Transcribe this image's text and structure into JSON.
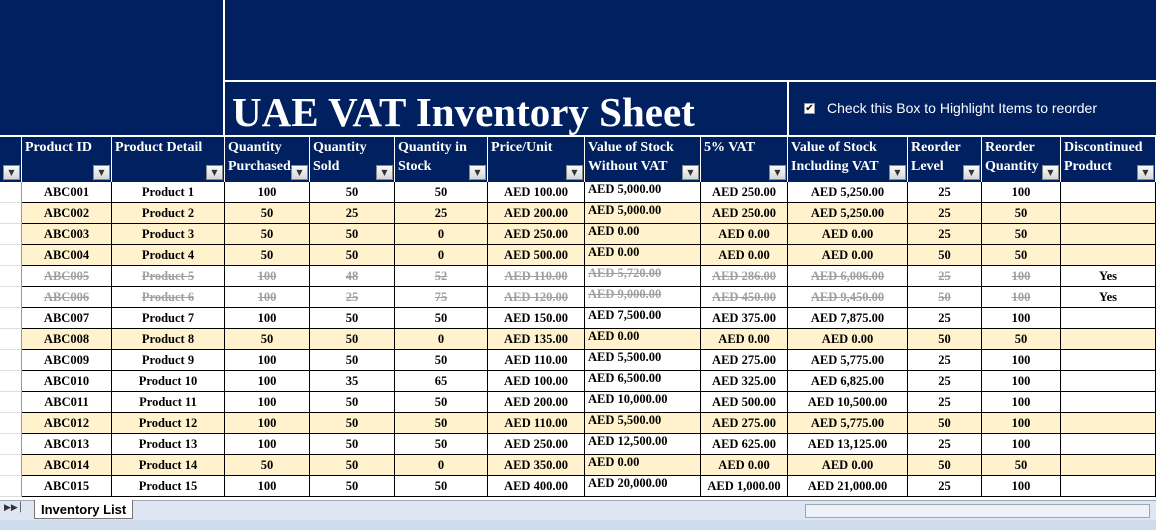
{
  "header": {
    "title": "UAE VAT Inventory Sheet",
    "checkbox_label": "Check this Box to Highlight Items to reorder",
    "checkbox_checked": true
  },
  "table": {
    "columns": [
      "Product ID",
      "Product Detail",
      "Quantity Purchased",
      "Quantity Sold",
      "Quantity in Stock",
      "Price/Unit",
      "Value of Stock Without VAT",
      "5% VAT",
      "Value of Stock Including VAT",
      "Reorder Level",
      "Reorder Quantity",
      "Discontinued Product"
    ],
    "rows": [
      [
        "ABC001",
        "Product 1",
        100,
        50,
        50,
        "AED 100.00",
        "AED 5,000.00",
        "AED 250.00",
        "AED 5,250.00",
        25,
        100,
        null
      ],
      [
        "ABC002",
        "Product 2",
        50,
        25,
        25,
        "AED 200.00",
        "AED 5,000.00",
        "AED 250.00",
        "AED 5,250.00",
        25,
        50,
        null
      ],
      [
        "ABC003",
        "Product 3",
        50,
        50,
        0,
        "AED 250.00",
        "AED 0.00",
        "AED 0.00",
        "AED 0.00",
        25,
        50,
        null
      ],
      [
        "ABC004",
        "Product 4",
        50,
        50,
        0,
        "AED 500.00",
        "AED 0.00",
        "AED 0.00",
        "AED 0.00",
        50,
        50,
        null
      ],
      [
        "ABC005",
        "Product 5",
        100,
        48,
        52,
        "AED 110.00",
        "AED 5,720.00",
        "AED 286.00",
        "AED 6,006.00",
        25,
        100,
        "Yes"
      ],
      [
        "ABC006",
        "Product 6",
        100,
        25,
        75,
        "AED 120.00",
        "AED 9,000.00",
        "AED 450.00",
        "AED 9,450.00",
        50,
        100,
        "Yes"
      ],
      [
        "ABC007",
        "Product 7",
        100,
        50,
        50,
        "AED 150.00",
        "AED 7,500.00",
        "AED 375.00",
        "AED 7,875.00",
        25,
        100,
        null
      ],
      [
        "ABC008",
        "Product 8",
        50,
        50,
        0,
        "AED 135.00",
        "AED 0.00",
        "AED 0.00",
        "AED 0.00",
        50,
        50,
        null
      ],
      [
        "ABC009",
        "Product 9",
        100,
        50,
        50,
        "AED 110.00",
        "AED 5,500.00",
        "AED 275.00",
        "AED 5,775.00",
        25,
        100,
        null
      ],
      [
        "ABC010",
        "Product 10",
        100,
        35,
        65,
        "AED 100.00",
        "AED 6,500.00",
        "AED 325.00",
        "AED 6,825.00",
        25,
        100,
        null
      ],
      [
        "ABC011",
        "Product 11",
        100,
        50,
        50,
        "AED 200.00",
        "AED 10,000.00",
        "AED 500.00",
        "AED 10,500.00",
        25,
        100,
        null
      ],
      [
        "ABC012",
        "Product 12",
        100,
        50,
        50,
        "AED 110.00",
        "AED 5,500.00",
        "AED 275.00",
        "AED 5,775.00",
        50,
        100,
        null
      ],
      [
        "ABC013",
        "Product 13",
        100,
        50,
        50,
        "AED 250.00",
        "AED 12,500.00",
        "AED 625.00",
        "AED 13,125.00",
        25,
        100,
        null
      ],
      [
        "ABC014",
        "Product 14",
        50,
        50,
        0,
        "AED 350.00",
        "AED 0.00",
        "AED 0.00",
        "AED 0.00",
        50,
        50,
        null
      ],
      [
        "ABC015",
        "Product 15",
        100,
        50,
        50,
        "AED 400.00",
        "AED 20,000.00",
        "AED 1,000.00",
        "AED 21,000.00",
        25,
        100,
        null
      ]
    ]
  },
  "sheet_tab": "Inventory List"
}
